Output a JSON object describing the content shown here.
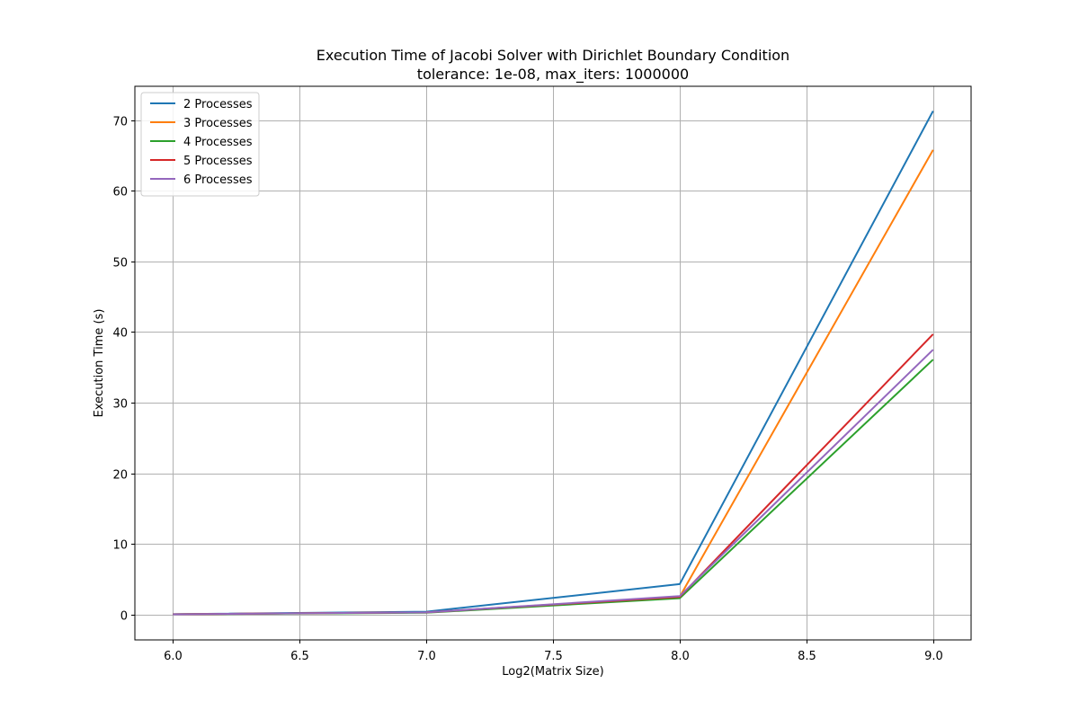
{
  "chart_data": {
    "type": "line",
    "title": "Execution Time of Jacobi Solver with Dirichlet Boundary Condition",
    "subtitle": "tolerance: 1e-08, max_iters: 1000000",
    "xlabel": "Log2(Matrix Size)",
    "ylabel": "Execution Time (s)",
    "x": [
      6.0,
      7.0,
      8.0,
      9.0
    ],
    "xlim": [
      5.85,
      9.15
    ],
    "ylim": [
      -3.6,
      74.8
    ],
    "x_ticks": [
      6.0,
      6.5,
      7.0,
      7.5,
      8.0,
      8.5,
      9.0
    ],
    "y_ticks": [
      0,
      10,
      20,
      30,
      40,
      50,
      60,
      70
    ],
    "x_tick_labels": [
      "6.0",
      "6.5",
      "7.0",
      "7.5",
      "8.0",
      "8.5",
      "9.0"
    ],
    "y_tick_labels": [
      "0",
      "10",
      "20",
      "30",
      "40",
      "50",
      "60",
      "70"
    ],
    "grid": true,
    "legend_position": "top-left",
    "series": [
      {
        "name": "2 Processes",
        "color": "#1f77b4",
        "values": [
          0.05,
          0.4,
          4.3,
          71.3
        ]
      },
      {
        "name": "3 Processes",
        "color": "#ff7f0e",
        "values": [
          0.04,
          0.3,
          2.5,
          65.8
        ]
      },
      {
        "name": "4 Processes",
        "color": "#2ca02c",
        "values": [
          0.03,
          0.25,
          2.3,
          36.1
        ]
      },
      {
        "name": "5 Processes",
        "color": "#d62728",
        "values": [
          0.03,
          0.3,
          2.5,
          39.7
        ]
      },
      {
        "name": "6 Processes",
        "color": "#9467bd",
        "values": [
          0.03,
          0.3,
          2.6,
          37.5
        ]
      }
    ]
  }
}
